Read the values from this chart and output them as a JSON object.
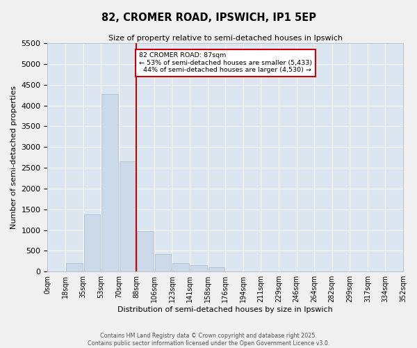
{
  "title_line1": "82, CROMER ROAD, IPSWICH, IP1 5EP",
  "title_line2": "Size of property relative to semi-detached houses in Ipswich",
  "xlabel": "Distribution of semi-detached houses by size in Ipswich",
  "ylabel": "Number of semi-detached properties",
  "bar_color": "#ccd9e8",
  "bar_edge_color": "#aabdd4",
  "background_color": "#dce6f0",
  "grid_color": "#ffffff",
  "fig_background": "#f0f0f0",
  "property_line_value": 87,
  "property_label": "82 CROMER ROAD: 87sqm",
  "pct_smaller": 53,
  "pct_larger": 44,
  "count_smaller": 5433,
  "count_larger": 4530,
  "annotation_box_color": "#ffffff",
  "annotation_box_edge": "#cc0000",
  "vline_color": "#cc0000",
  "footer_line1": "Contains HM Land Registry data © Crown copyright and database right 2025.",
  "footer_line2": "Contains public sector information licensed under the Open Government Licence v3.0.",
  "bin_edges": [
    0,
    18,
    35,
    53,
    70,
    88,
    106,
    123,
    141,
    158,
    176,
    194,
    211,
    229,
    246,
    264,
    282,
    299,
    317,
    334,
    352
  ],
  "bin_labels": [
    "0sqm",
    "18sqm",
    "35sqm",
    "53sqm",
    "70sqm",
    "88sqm",
    "106sqm",
    "123sqm",
    "141sqm",
    "158sqm",
    "176sqm",
    "194sqm",
    "211sqm",
    "229sqm",
    "246sqm",
    "264sqm",
    "282sqm",
    "299sqm",
    "317sqm",
    "334sqm",
    "352sqm"
  ],
  "counts": [
    5,
    200,
    1380,
    4280,
    2650,
    970,
    430,
    210,
    150,
    100,
    0,
    0,
    0,
    0,
    0,
    0,
    0,
    0,
    0,
    0
  ],
  "ylim": [
    0,
    5500
  ],
  "yticks": [
    0,
    500,
    1000,
    1500,
    2000,
    2500,
    3000,
    3500,
    4000,
    4500,
    5000,
    5500
  ]
}
